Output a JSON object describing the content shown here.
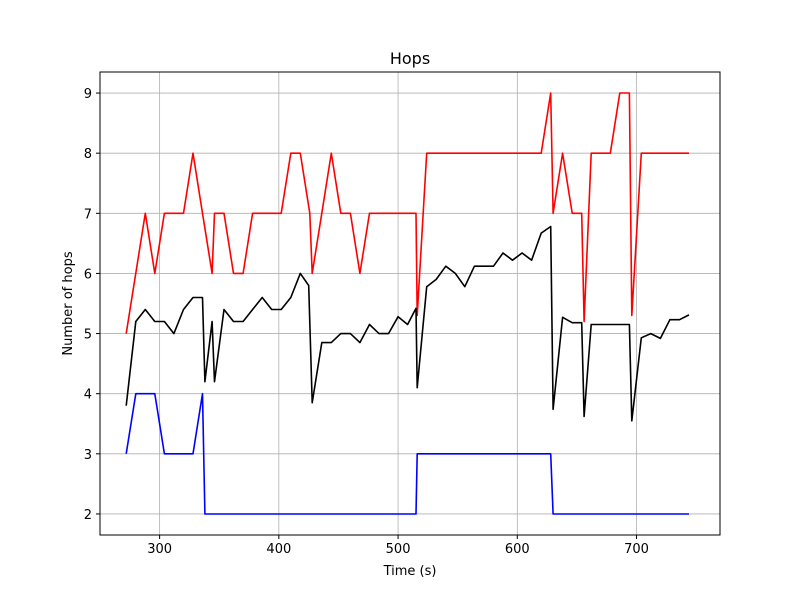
{
  "chart_data": {
    "type": "line",
    "title": "Hops",
    "xlabel": "Time (s)",
    "ylabel": "Number of hops",
    "xlim": [
      250,
      770
    ],
    "ylim": [
      1.65,
      9.35
    ],
    "xticks": [
      300,
      400,
      500,
      600,
      700
    ],
    "yticks": [
      2,
      3,
      4,
      5,
      6,
      7,
      8,
      9
    ],
    "grid": true,
    "series": [
      {
        "color": "#ff0000",
        "x": [
          272,
          288,
          296,
          304,
          320,
          328,
          336,
          344,
          346,
          354,
          362,
          370,
          378,
          386,
          402,
          410,
          418,
          426,
          428,
          436,
          444,
          452,
          460,
          468,
          476,
          484,
          492,
          500,
          508,
          515,
          516,
          524,
          533,
          540,
          548,
          556,
          564,
          572,
          580,
          588,
          596,
          604,
          612,
          620,
          628,
          630,
          638,
          646,
          654,
          656,
          662,
          670,
          678,
          686,
          694,
          696,
          704,
          712,
          720,
          744
        ],
        "y": [
          5,
          7,
          6,
          7,
          7,
          8,
          7,
          6,
          7,
          7,
          6,
          6,
          7,
          7,
          7,
          8,
          8,
          7,
          6,
          7,
          8,
          7,
          7,
          6,
          7,
          7,
          7,
          7,
          7,
          7,
          5.3,
          8,
          8,
          8,
          8,
          8,
          8,
          8,
          8,
          8,
          8,
          8,
          8,
          8,
          9,
          7,
          8,
          7,
          7,
          5.2,
          8,
          8,
          8,
          9,
          9,
          5.3,
          8,
          8,
          8,
          8
        ]
      },
      {
        "color": "#000000",
        "x": [
          272,
          280,
          288,
          296,
          304,
          312,
          320,
          328,
          336,
          338,
          344,
          346,
          354,
          362,
          370,
          378,
          386,
          394,
          402,
          410,
          418,
          425,
          428,
          436,
          444,
          452,
          460,
          468,
          476,
          484,
          492,
          500,
          508,
          515,
          516,
          524,
          532,
          540,
          548,
          556,
          564,
          572,
          580,
          588,
          596,
          604,
          612,
          620,
          628,
          630,
          638,
          646,
          654,
          656,
          662,
          670,
          678,
          686,
          694,
          696,
          704,
          712,
          720,
          728,
          736,
          744
        ],
        "y": [
          3.8,
          5.2,
          5.4,
          5.2,
          5.2,
          5,
          5.4,
          5.6,
          5.6,
          4.2,
          5.2,
          4.2,
          5.4,
          5.2,
          5.2,
          5.4,
          5.6,
          5.4,
          5.4,
          5.6,
          6,
          5.8,
          3.85,
          4.85,
          4.85,
          5,
          5,
          4.85,
          5.15,
          5,
          5,
          5.28,
          5.15,
          5.42,
          4.1,
          5.78,
          5.9,
          6.12,
          6,
          5.78,
          6.12,
          6.12,
          6.12,
          6.34,
          6.22,
          6.34,
          6.22,
          6.67,
          6.78,
          3.74,
          5.27,
          5.18,
          5.18,
          3.62,
          5.15,
          5.15,
          5.15,
          5.15,
          5.15,
          3.55,
          4.93,
          5,
          4.92,
          5.23,
          5.23,
          5.31
        ]
      },
      {
        "color": "#0000ff",
        "x": [
          272,
          280,
          288,
          296,
          304,
          312,
          320,
          328,
          336,
          338,
          344,
          352,
          360,
          368,
          376,
          384,
          392,
          400,
          408,
          416,
          424,
          432,
          440,
          448,
          456,
          464,
          472,
          480,
          488,
          496,
          504,
          512,
          515,
          516,
          524,
          532,
          540,
          548,
          556,
          564,
          572,
          580,
          588,
          596,
          604,
          612,
          620,
          628,
          630,
          638,
          646,
          654,
          662,
          670,
          678,
          686,
          694,
          702,
          710,
          718,
          726,
          734,
          744
        ],
        "y": [
          3,
          4,
          4,
          4,
          3,
          3,
          3,
          3,
          4,
          2,
          2,
          2,
          2,
          2,
          2,
          2,
          2,
          2,
          2,
          2,
          2,
          2,
          2,
          2,
          2,
          2,
          2,
          2,
          2,
          2,
          2,
          2,
          2,
          3,
          3,
          3,
          3,
          3,
          3,
          3,
          3,
          3,
          3,
          3,
          3,
          3,
          3,
          3,
          2,
          2,
          2,
          2,
          2,
          2,
          2,
          2,
          2,
          2,
          2,
          2,
          2,
          2,
          2
        ]
      }
    ]
  }
}
